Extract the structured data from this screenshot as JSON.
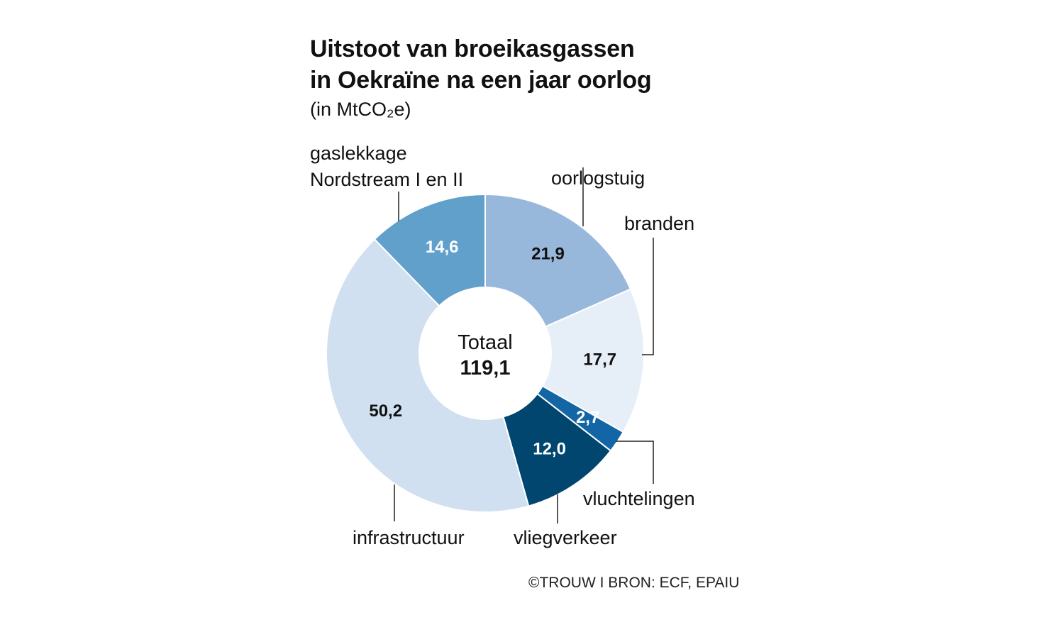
{
  "header": {
    "title_line1": "Uitstoot van broeikasgassen",
    "title_line2": "in Oekraïne na een jaar oorlog",
    "unit": "(in MtCO₂e)"
  },
  "center": {
    "label": "Totaal",
    "value": "119,1"
  },
  "source": "©TROUW I BRON: ECF, EPAIU",
  "chart_data": {
    "type": "pie",
    "donut": true,
    "title": "Uitstoot van broeikasgassen in Oekraïne na een jaar oorlog",
    "subtitle": "(in MtCO₂e)",
    "total": 119.1,
    "total_label": "119,1",
    "slices": [
      {
        "category_lines": [
          "oorlogstuig"
        ],
        "value": 21.9,
        "value_label": "21,9",
        "color": "#98b8db",
        "label_color": "#111111"
      },
      {
        "category_lines": [
          "branden"
        ],
        "value": 17.7,
        "value_label": "17,7",
        "color": "#e6eef8",
        "label_color": "#111111"
      },
      {
        "category_lines": [
          "vluchtelingen"
        ],
        "value": 2.7,
        "value_label": "2,7",
        "color": "#1366a6",
        "label_color": "#ffffff"
      },
      {
        "category_lines": [
          "vliegverkeer"
        ],
        "value": 12.0,
        "value_label": "12,0",
        "color": "#00466f",
        "label_color": "#ffffff"
      },
      {
        "category_lines": [
          "infrastructuur"
        ],
        "value": 50.2,
        "value_label": "50,2",
        "color": "#d0e0f1",
        "label_color": "#111111"
      },
      {
        "category_lines": [
          "gaslekkage",
          "Nordstream I en II"
        ],
        "value": 14.6,
        "value_label": "14,6",
        "color": "#62a0cc",
        "label_color": "#ffffff"
      }
    ]
  }
}
